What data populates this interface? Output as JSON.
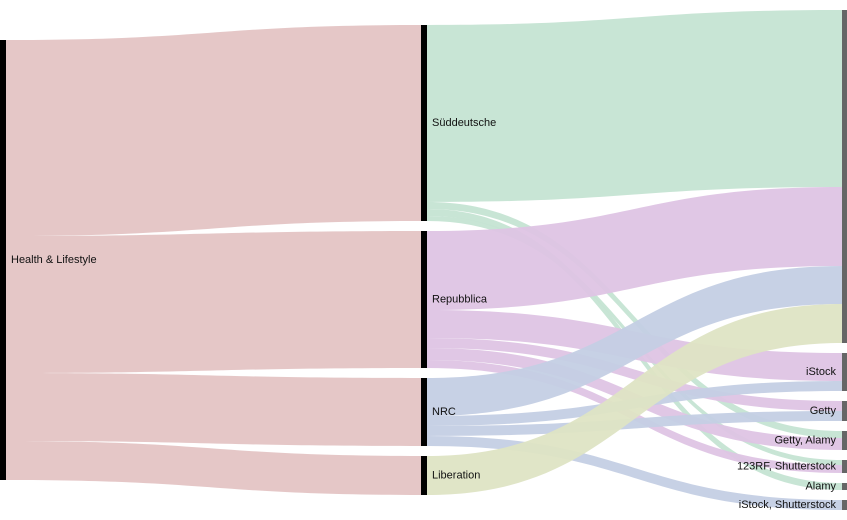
{
  "chart_data": {
    "type": "sankey",
    "title": "",
    "node_colors": {
      "Health & Lifestyle": "#000000",
      "Süddeutsche": "#000000",
      "Repubblica": "#000000",
      "NRC": "#000000",
      "Liberation": "#000000",
      "target": "#666666"
    },
    "columns": [
      {
        "nodes": [
          {
            "name": "Health & Lifestyle",
            "label": "Health & Lifestyle"
          }
        ]
      },
      {
        "nodes": [
          {
            "name": "Süddeutsche",
            "label": "Süddeutsche"
          },
          {
            "name": "Repubblica",
            "label": "Repubblica"
          },
          {
            "name": "NRC",
            "label": "NRC"
          },
          {
            "name": "Liberation",
            "label": "Liberation"
          }
        ]
      },
      {
        "nodes": [
          {
            "name": "unlabeled",
            "label": ""
          },
          {
            "name": "iStock",
            "label": "iStock"
          },
          {
            "name": "Getty",
            "label": "Getty"
          },
          {
            "name": "Getty, Alamy",
            "label": "Getty, Alamy"
          },
          {
            "name": "123RF, Shutterstock",
            "label": "123RF, Shutterstock"
          },
          {
            "name": "Alamy",
            "label": "Alamy"
          },
          {
            "name": "iStock, Shutterstock",
            "label": "iStock, Shutterstock"
          }
        ]
      }
    ],
    "links": [
      {
        "source": "Health & Lifestyle",
        "target": "Süddeutsche",
        "value": 196,
        "color": "#e4c4c4"
      },
      {
        "source": "Health & Lifestyle",
        "target": "Repubblica",
        "value": 137,
        "color": "#e4c4c4"
      },
      {
        "source": "Health & Lifestyle",
        "target": "NRC",
        "value": 68,
        "color": "#e4c4c4"
      },
      {
        "source": "Health & Lifestyle",
        "target": "Liberation",
        "value": 39,
        "color": "#e4c4c4"
      },
      {
        "source": "Süddeutsche",
        "target": "unlabeled",
        "value": 177,
        "color": "#c5e4d3"
      },
      {
        "source": "Süddeutsche",
        "target": "Getty, Alamy",
        "value": 7,
        "color": "#c5e4d3"
      },
      {
        "source": "Süddeutsche",
        "target": "Alamy",
        "value": 7,
        "color": "#c5e4d3"
      },
      {
        "source": "Süddeutsche",
        "target": "123RF, Shutterstock",
        "value": 5,
        "color": "#c5e4d3"
      },
      {
        "source": "Repubblica",
        "target": "unlabeled",
        "value": 79,
        "color": "#dec4e4"
      },
      {
        "source": "Repubblica",
        "target": "iStock",
        "value": 28,
        "color": "#dec4e4"
      },
      {
        "source": "Repubblica",
        "target": "Getty",
        "value": 10,
        "color": "#dec4e4"
      },
      {
        "source": "Repubblica",
        "target": "Getty, Alamy",
        "value": 12,
        "color": "#dec4e4"
      },
      {
        "source": "Repubblica",
        "target": "123RF, Shutterstock",
        "value": 8,
        "color": "#dec4e4"
      },
      {
        "source": "NRC",
        "target": "unlabeled",
        "value": 38,
        "color": "#c4cfe4"
      },
      {
        "source": "NRC",
        "target": "iStock",
        "value": 10,
        "color": "#c4cfe4"
      },
      {
        "source": "NRC",
        "target": "Getty",
        "value": 10,
        "color": "#c4cfe4"
      },
      {
        "source": "NRC",
        "target": "iStock, Shutterstock",
        "value": 10,
        "color": "#c4cfe4"
      },
      {
        "source": "Liberation",
        "target": "unlabeled",
        "value": 39,
        "color": "#dee4c4"
      }
    ]
  }
}
